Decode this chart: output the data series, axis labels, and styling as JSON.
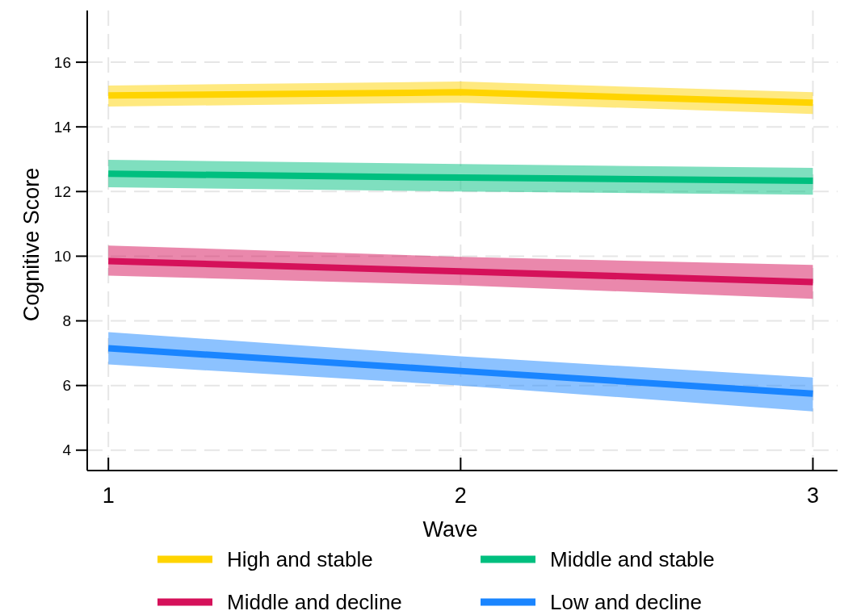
{
  "chart_data": {
    "type": "line",
    "xlabel": "Wave",
    "ylabel": "Cognitive Score",
    "x": [
      1,
      2,
      3
    ],
    "xlim": [
      0.94,
      3.07
    ],
    "xticks": [
      1,
      2,
      3
    ],
    "ylim": [
      3.37,
      17.6
    ],
    "yticks": [
      4,
      6,
      8,
      10,
      12,
      14,
      16
    ],
    "grid": true,
    "legend": "bottom",
    "series": [
      {
        "name": "High and stable",
        "color": "#ffd400",
        "values": [
          14.97,
          15.07,
          14.75
        ],
        "lower": [
          14.63,
          14.75,
          14.4
        ],
        "upper": [
          15.28,
          15.4,
          15.07
        ]
      },
      {
        "name": "Middle and stable",
        "color": "#00bf7f",
        "values": [
          12.55,
          12.43,
          12.33
        ],
        "lower": [
          12.13,
          12.0,
          11.9
        ],
        "upper": [
          12.98,
          12.85,
          12.73
        ]
      },
      {
        "name": "Middle and decline",
        "color": "#d5115a",
        "values": [
          9.85,
          9.53,
          9.2
        ],
        "lower": [
          9.4,
          9.1,
          8.68
        ],
        "upper": [
          10.33,
          9.98,
          9.73
        ]
      },
      {
        "name": "Low and decline",
        "color": "#1a85ff",
        "values": [
          7.15,
          6.45,
          5.75
        ],
        "lower": [
          6.65,
          6.0,
          5.2
        ],
        "upper": [
          7.65,
          6.9,
          6.25
        ]
      }
    ]
  }
}
